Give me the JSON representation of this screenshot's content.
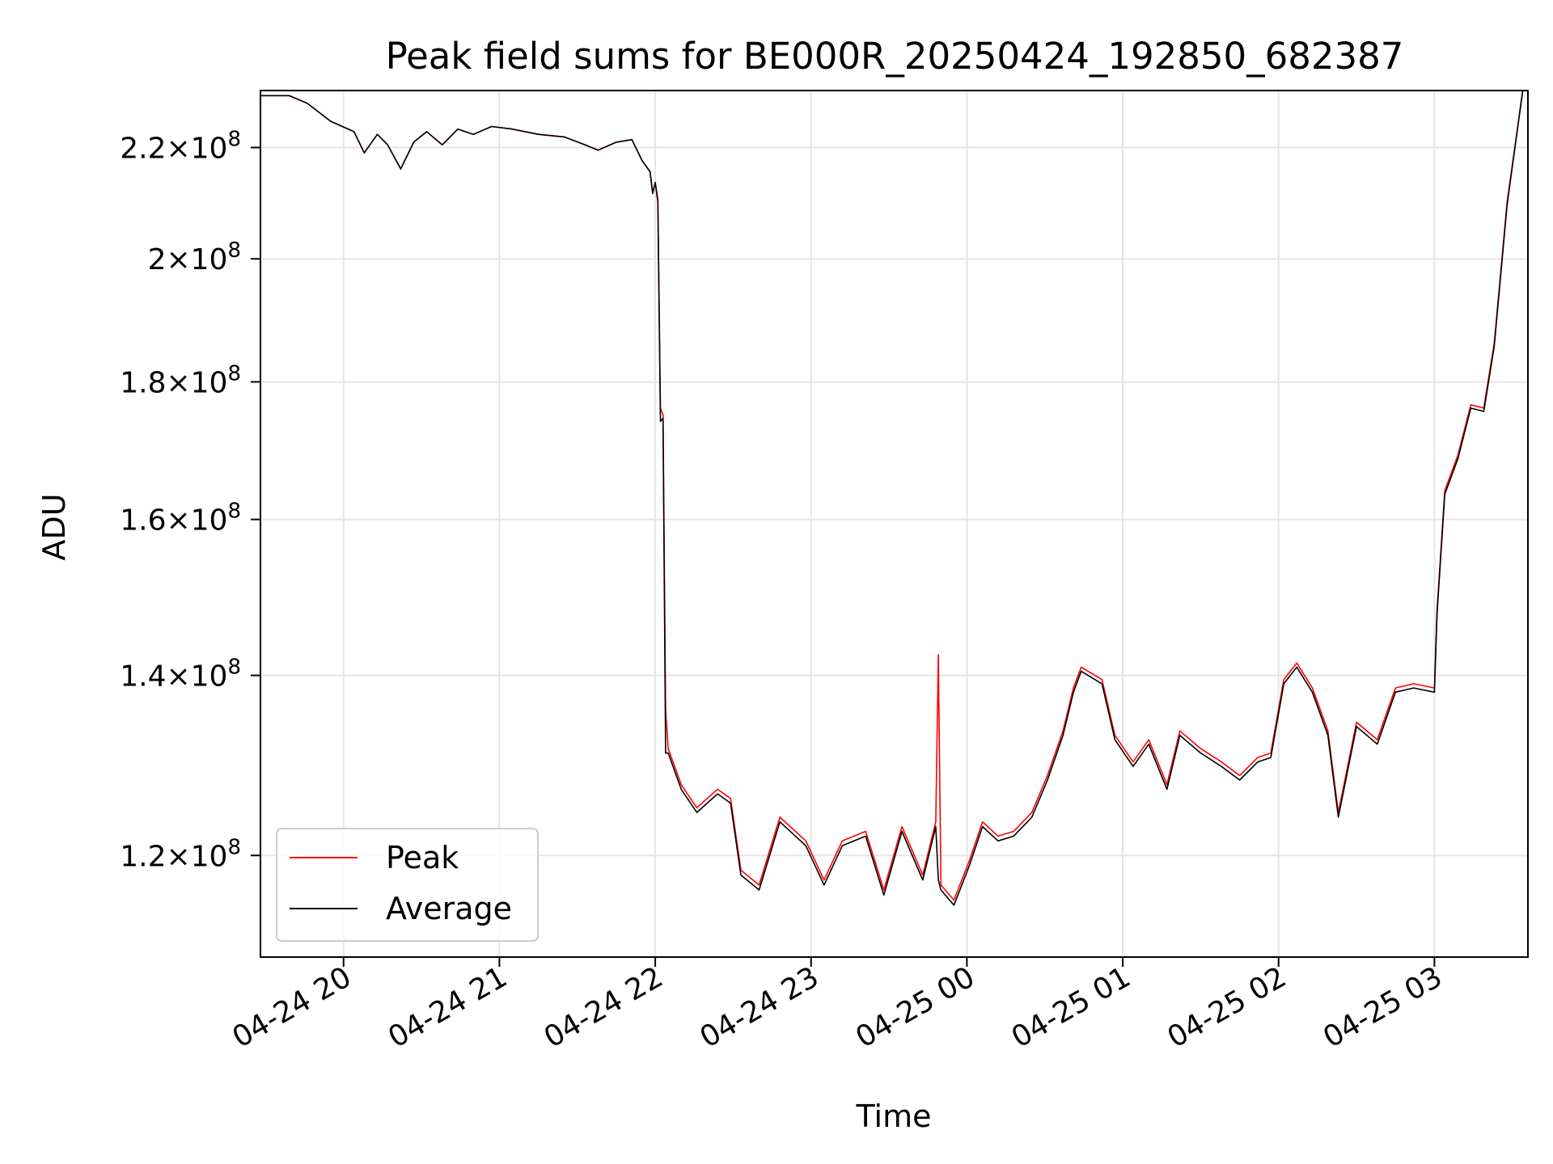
{
  "chart_data": {
    "type": "line",
    "title": "Peak field sums for BE000R_20250424_192850_682387",
    "xlabel": "Time",
    "ylabel": "ADU",
    "yscale": "log",
    "grid": true,
    "legend_position": "lower-left",
    "xlim": [
      "2025-04-24 19:28",
      "2025-04-25 03:36"
    ],
    "ylim": [
      110000000,
      231000000
    ],
    "xticks": [
      {
        "t": "2025-04-24 20:00",
        "label": "04-24 20"
      },
      {
        "t": "2025-04-24 21:00",
        "label": "04-24 21"
      },
      {
        "t": "2025-04-24 22:00",
        "label": "04-24 22"
      },
      {
        "t": "2025-04-24 23:00",
        "label": "04-24 23"
      },
      {
        "t": "2025-04-25 00:00",
        "label": "04-25 00"
      },
      {
        "t": "2025-04-25 01:00",
        "label": "04-25 01"
      },
      {
        "t": "2025-04-25 02:00",
        "label": "04-25 02"
      },
      {
        "t": "2025-04-25 03:00",
        "label": "04-25 03"
      }
    ],
    "yticks": [
      {
        "v": 120000000,
        "mant": "1.2",
        "exp": "8"
      },
      {
        "v": 140000000,
        "mant": "1.4",
        "exp": "8"
      },
      {
        "v": 160000000,
        "mant": "1.6",
        "exp": "8"
      },
      {
        "v": 180000000,
        "mant": "1.8",
        "exp": "8"
      },
      {
        "v": 200000000,
        "mant": "2",
        "exp": "8"
      },
      {
        "v": 220000000,
        "mant": "2.2",
        "exp": "8"
      }
    ],
    "tick_times_label": "×10",
    "series": [
      {
        "name": "Peak",
        "color": "#ff0000",
        "points": [
          [
            "2025-04-24 19:28",
            230000000
          ],
          [
            "2025-04-24 19:39",
            230000000
          ],
          [
            "2025-04-24 19:46",
            228500000
          ],
          [
            "2025-04-24 19:55",
            225000000
          ],
          [
            "2025-04-24 20:04",
            223000000
          ],
          [
            "2025-04-24 20:08",
            219000000
          ],
          [
            "2025-04-24 20:13",
            222500000
          ],
          [
            "2025-04-24 20:17",
            220500000
          ],
          [
            "2025-04-24 20:22",
            216000000
          ],
          [
            "2025-04-24 20:27",
            221000000
          ],
          [
            "2025-04-24 20:32",
            223000000
          ],
          [
            "2025-04-24 20:38",
            220500000
          ],
          [
            "2025-04-24 20:44",
            223500000
          ],
          [
            "2025-04-24 20:50",
            222500000
          ],
          [
            "2025-04-24 20:57",
            224000000
          ],
          [
            "2025-04-24 21:05",
            223500000
          ],
          [
            "2025-04-24 21:15",
            222500000
          ],
          [
            "2025-04-24 21:25",
            222000000
          ],
          [
            "2025-04-24 21:33",
            220500000
          ],
          [
            "2025-04-24 21:38",
            219500000
          ],
          [
            "2025-04-24 21:45",
            221000000
          ],
          [
            "2025-04-24 21:51",
            221500000
          ],
          [
            "2025-04-24 21:55",
            217500000
          ],
          [
            "2025-04-24 21:58",
            215500000
          ],
          [
            "2025-04-24 21:59",
            211500000
          ],
          [
            "2025-04-24 22:00",
            213500000
          ],
          [
            "2025-04-24 22:01",
            210500000
          ],
          [
            "2025-04-24 22:02",
            176000000
          ],
          [
            "2025-04-24 22:03",
            175000000
          ],
          [
            "2025-04-24 22:04",
            136000000
          ],
          [
            "2025-04-24 22:05",
            131500000
          ],
          [
            "2025-04-24 22:10",
            127500000
          ],
          [
            "2025-04-24 22:16",
            125000000
          ],
          [
            "2025-04-24 22:24",
            127000000
          ],
          [
            "2025-04-24 22:29",
            126000000
          ],
          [
            "2025-04-24 22:33",
            118500000
          ],
          [
            "2025-04-24 22:40",
            117000000
          ],
          [
            "2025-04-24 22:48",
            124000000
          ],
          [
            "2025-04-24 22:58",
            121500000
          ],
          [
            "2025-04-24 23:05",
            117500000
          ],
          [
            "2025-04-24 23:12",
            121500000
          ],
          [
            "2025-04-24 23:21",
            122500000
          ],
          [
            "2025-04-24 23:28",
            116500000
          ],
          [
            "2025-04-24 23:35",
            123000000
          ],
          [
            "2025-04-24 23:43",
            118000000
          ],
          [
            "2025-04-24 23:48",
            123500000
          ],
          [
            "2025-04-24 23:49",
            142500000
          ],
          [
            "2025-04-24 23:50",
            117000000
          ],
          [
            "2025-04-24 23:55",
            115500000
          ],
          [
            "2025-04-25 00:01",
            119500000
          ],
          [
            "2025-04-25 00:06",
            123500000
          ],
          [
            "2025-04-25 00:12",
            122000000
          ],
          [
            "2025-04-25 00:18",
            122500000
          ],
          [
            "2025-04-25 00:25",
            124500000
          ],
          [
            "2025-04-25 00:31",
            128500000
          ],
          [
            "2025-04-25 00:37",
            133500000
          ],
          [
            "2025-04-25 00:41",
            138500000
          ],
          [
            "2025-04-25 00:44",
            141000000
          ],
          [
            "2025-04-25 00:52",
            139500000
          ],
          [
            "2025-04-25 00:57",
            133000000
          ],
          [
            "2025-04-25 01:04",
            130000000
          ],
          [
            "2025-04-25 01:10",
            132500000
          ],
          [
            "2025-04-25 01:17",
            127500000
          ],
          [
            "2025-04-25 01:22",
            133500000
          ],
          [
            "2025-04-25 01:30",
            131500000
          ],
          [
            "2025-04-25 01:38",
            130000000
          ],
          [
            "2025-04-25 01:45",
            128500000
          ],
          [
            "2025-04-25 01:52",
            130500000
          ],
          [
            "2025-04-25 01:57",
            131000000
          ],
          [
            "2025-04-25 02:02",
            139500000
          ],
          [
            "2025-04-25 02:07",
            141500000
          ],
          [
            "2025-04-25 02:13",
            138500000
          ],
          [
            "2025-04-25 02:19",
            133500000
          ],
          [
            "2025-04-25 02:23",
            124500000
          ],
          [
            "2025-04-25 02:30",
            134500000
          ],
          [
            "2025-04-25 02:38",
            132500000
          ],
          [
            "2025-04-25 02:45",
            138500000
          ],
          [
            "2025-04-25 02:52",
            139000000
          ],
          [
            "2025-04-25 03:00",
            138500000
          ],
          [
            "2025-04-25 03:01",
            148000000
          ],
          [
            "2025-04-25 03:04",
            164000000
          ],
          [
            "2025-04-25 03:09",
            169000000
          ],
          [
            "2025-04-25 03:14",
            176500000
          ],
          [
            "2025-04-25 03:19",
            176000000
          ],
          [
            "2025-04-25 03:23",
            186000000
          ],
          [
            "2025-04-25 03:28",
            210000000
          ],
          [
            "2025-04-25 03:34",
            231000000
          ]
        ]
      },
      {
        "name": "Average",
        "color": "#000000",
        "points": [
          [
            "2025-04-24 19:28",
            230000000
          ],
          [
            "2025-04-24 19:39",
            230000000
          ],
          [
            "2025-04-24 19:46",
            228500000
          ],
          [
            "2025-04-24 19:55",
            225000000
          ],
          [
            "2025-04-24 20:04",
            223000000
          ],
          [
            "2025-04-24 20:08",
            219000000
          ],
          [
            "2025-04-24 20:13",
            222500000
          ],
          [
            "2025-04-24 20:17",
            220500000
          ],
          [
            "2025-04-24 20:22",
            216000000
          ],
          [
            "2025-04-24 20:27",
            221000000
          ],
          [
            "2025-04-24 20:32",
            223000000
          ],
          [
            "2025-04-24 20:38",
            220500000
          ],
          [
            "2025-04-24 20:44",
            223500000
          ],
          [
            "2025-04-24 20:50",
            222500000
          ],
          [
            "2025-04-24 20:57",
            224000000
          ],
          [
            "2025-04-24 21:05",
            223500000
          ],
          [
            "2025-04-24 21:15",
            222500000
          ],
          [
            "2025-04-24 21:25",
            222000000
          ],
          [
            "2025-04-24 21:33",
            220500000
          ],
          [
            "2025-04-24 21:38",
            219500000
          ],
          [
            "2025-04-24 21:45",
            221000000
          ],
          [
            "2025-04-24 21:51",
            221500000
          ],
          [
            "2025-04-24 21:55",
            217500000
          ],
          [
            "2025-04-24 21:58",
            215500000
          ],
          [
            "2025-04-24 21:59",
            211500000
          ],
          [
            "2025-04-24 22:00",
            213500000
          ],
          [
            "2025-04-24 22:01",
            210000000
          ],
          [
            "2025-04-24 22:02",
            174000000
          ],
          [
            "2025-04-24 22:03",
            174500000
          ],
          [
            "2025-04-24 22:04",
            131000000
          ],
          [
            "2025-04-24 22:05",
            131000000
          ],
          [
            "2025-04-24 22:10",
            127000000
          ],
          [
            "2025-04-24 22:16",
            124500000
          ],
          [
            "2025-04-24 22:24",
            126500000
          ],
          [
            "2025-04-24 22:29",
            125500000
          ],
          [
            "2025-04-24 22:33",
            118000000
          ],
          [
            "2025-04-24 22:40",
            116500000
          ],
          [
            "2025-04-24 22:48",
            123500000
          ],
          [
            "2025-04-24 22:58",
            121000000
          ],
          [
            "2025-04-24 23:05",
            117000000
          ],
          [
            "2025-04-24 23:12",
            121000000
          ],
          [
            "2025-04-24 23:21",
            122000000
          ],
          [
            "2025-04-24 23:28",
            116000000
          ],
          [
            "2025-04-24 23:35",
            122500000
          ],
          [
            "2025-04-24 23:43",
            117500000
          ],
          [
            "2025-04-24 23:48",
            123000000
          ],
          [
            "2025-04-24 23:49",
            117500000
          ],
          [
            "2025-04-24 23:50",
            116500000
          ],
          [
            "2025-04-24 23:55",
            115000000
          ],
          [
            "2025-04-25 00:01",
            119000000
          ],
          [
            "2025-04-25 00:06",
            123000000
          ],
          [
            "2025-04-25 00:12",
            121500000
          ],
          [
            "2025-04-25 00:18",
            122000000
          ],
          [
            "2025-04-25 00:25",
            124000000
          ],
          [
            "2025-04-25 00:31",
            128000000
          ],
          [
            "2025-04-25 00:37",
            133000000
          ],
          [
            "2025-04-25 00:41",
            138000000
          ],
          [
            "2025-04-25 00:44",
            140500000
          ],
          [
            "2025-04-25 00:52",
            139000000
          ],
          [
            "2025-04-25 00:57",
            132500000
          ],
          [
            "2025-04-25 01:04",
            129500000
          ],
          [
            "2025-04-25 01:10",
            132000000
          ],
          [
            "2025-04-25 01:17",
            127000000
          ],
          [
            "2025-04-25 01:22",
            133000000
          ],
          [
            "2025-04-25 01:30",
            131000000
          ],
          [
            "2025-04-25 01:38",
            129500000
          ],
          [
            "2025-04-25 01:45",
            128000000
          ],
          [
            "2025-04-25 01:52",
            130000000
          ],
          [
            "2025-04-25 01:57",
            130500000
          ],
          [
            "2025-04-25 02:02",
            139000000
          ],
          [
            "2025-04-25 02:07",
            141000000
          ],
          [
            "2025-04-25 02:13",
            138000000
          ],
          [
            "2025-04-25 02:19",
            133000000
          ],
          [
            "2025-04-25 02:23",
            124000000
          ],
          [
            "2025-04-25 02:30",
            134000000
          ],
          [
            "2025-04-25 02:38",
            132000000
          ],
          [
            "2025-04-25 02:45",
            138000000
          ],
          [
            "2025-04-25 02:52",
            138500000
          ],
          [
            "2025-04-25 03:00",
            138000000
          ],
          [
            "2025-04-25 03:01",
            147500000
          ],
          [
            "2025-04-25 03:04",
            163500000
          ],
          [
            "2025-04-25 03:09",
            168500000
          ],
          [
            "2025-04-25 03:14",
            176000000
          ],
          [
            "2025-04-25 03:19",
            175500000
          ],
          [
            "2025-04-25 03:23",
            185500000
          ],
          [
            "2025-04-25 03:28",
            209500000
          ],
          [
            "2025-04-25 03:34",
            231000000
          ]
        ]
      }
    ]
  }
}
